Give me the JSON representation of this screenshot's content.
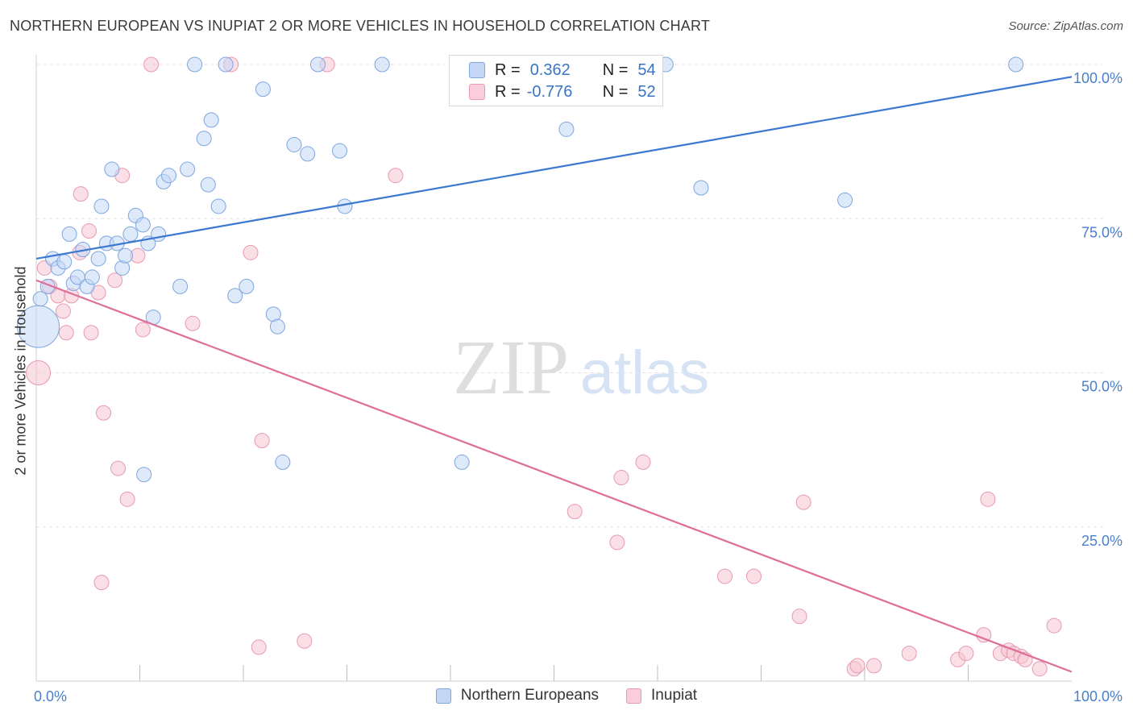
{
  "header": {
    "title": "NORTHERN EUROPEAN VS INUPIAT 2 OR MORE VEHICLES IN HOUSEHOLD CORRELATION CHART",
    "source": "Source: ZipAtlas.com"
  },
  "watermark": {
    "zip": "ZIP",
    "atlas": "atlas"
  },
  "legend": {
    "rows": [
      {
        "r_label": "R =",
        "r_value": "0.362",
        "n_label": "N =",
        "n_value": "54"
      },
      {
        "r_label": "R =",
        "r_value": "-0.776",
        "n_label": "N =",
        "n_value": "52"
      }
    ]
  },
  "chart_data": {
    "type": "scatter",
    "title": "NORTHERN EUROPEAN VS INUPIAT 2 OR MORE VEHICLES IN HOUSEHOLD CORRELATION CHART",
    "xlabel": "",
    "ylabel": "2 or more Vehicles in Household",
    "xlim": [
      0,
      100
    ],
    "ylim": [
      0,
      100
    ],
    "x_tick_labels": [
      {
        "value": 0,
        "label": "0.0%"
      },
      {
        "value": 100,
        "label": "100.0%"
      }
    ],
    "y_tick_labels": [
      {
        "value": 25,
        "label": "25.0%"
      },
      {
        "value": 50,
        "label": "50.0%"
      },
      {
        "value": 75,
        "label": "75.0%"
      },
      {
        "value": 100,
        "label": "100.0%"
      }
    ],
    "grid": true,
    "legend_position": "bottom-center",
    "colors": {
      "northern_europeans": "#7ea6e0",
      "inupiat": "#e79ab0",
      "blue_line": "#3b78d0",
      "pink_line": "#de6e98"
    },
    "series": [
      {
        "name": "Northern Europeans",
        "r": 0.362,
        "n": 54,
        "trend": [
          [
            0,
            68.5
          ],
          [
            100,
            98
          ]
        ],
        "points": [
          [
            0.2,
            57.5
          ],
          [
            0.4,
            62
          ],
          [
            1.1,
            64
          ],
          [
            1.6,
            68.5
          ],
          [
            2.1,
            67
          ],
          [
            2.7,
            68
          ],
          [
            3.2,
            72.5
          ],
          [
            3.6,
            64.5
          ],
          [
            4.0,
            65.5
          ],
          [
            4.5,
            70
          ],
          [
            4.9,
            64
          ],
          [
            5.4,
            65.5
          ],
          [
            6.0,
            68.5
          ],
          [
            6.3,
            77
          ],
          [
            6.8,
            71
          ],
          [
            7.3,
            83
          ],
          [
            7.8,
            71
          ],
          [
            8.3,
            67
          ],
          [
            8.6,
            69
          ],
          [
            9.1,
            72.5
          ],
          [
            9.6,
            75.5
          ],
          [
            10.3,
            74
          ],
          [
            10.8,
            71
          ],
          [
            11.3,
            59
          ],
          [
            11.8,
            72.5
          ],
          [
            12.3,
            81
          ],
          [
            12.8,
            82
          ],
          [
            13.9,
            64
          ],
          [
            14.6,
            83
          ],
          [
            16.2,
            88
          ],
          [
            16.6,
            80.5
          ],
          [
            16.9,
            91
          ],
          [
            17.6,
            77
          ],
          [
            18.3,
            100
          ],
          [
            19.2,
            62.5
          ],
          [
            20.3,
            64
          ],
          [
            21.9,
            96
          ],
          [
            22.9,
            59.5
          ],
          [
            23.3,
            57.5
          ],
          [
            23.8,
            35.5
          ],
          [
            24.9,
            87
          ],
          [
            26.2,
            85.5
          ],
          [
            27.2,
            100
          ],
          [
            29.3,
            86
          ],
          [
            29.8,
            77
          ],
          [
            33.4,
            100
          ],
          [
            41.1,
            35.5
          ],
          [
            51.2,
            89.5
          ],
          [
            60.8,
            100
          ],
          [
            64.2,
            80
          ],
          [
            78.1,
            78
          ],
          [
            94.6,
            100
          ],
          [
            10.4,
            33.5
          ],
          [
            15.3,
            100
          ]
        ]
      },
      {
        "name": "Inupiat",
        "r": -0.776,
        "n": 52,
        "trend": [
          [
            0,
            65
          ],
          [
            100,
            1.5
          ]
        ],
        "points": [
          [
            0.2,
            50
          ],
          [
            0.8,
            67
          ],
          [
            1.3,
            64
          ],
          [
            2.1,
            62.5
          ],
          [
            2.6,
            60
          ],
          [
            2.9,
            56.5
          ],
          [
            3.4,
            62.5
          ],
          [
            4.2,
            69.5
          ],
          [
            4.3,
            79
          ],
          [
            5.1,
            73
          ],
          [
            5.3,
            56.5
          ],
          [
            6.0,
            63
          ],
          [
            6.3,
            16
          ],
          [
            6.5,
            43.5
          ],
          [
            7.6,
            65
          ],
          [
            7.9,
            34.5
          ],
          [
            8.3,
            82
          ],
          [
            8.8,
            29.5
          ],
          [
            9.8,
            69
          ],
          [
            10.3,
            57
          ],
          [
            11.1,
            100
          ],
          [
            15.1,
            58
          ],
          [
            18.8,
            100
          ],
          [
            20.7,
            69.5
          ],
          [
            21.5,
            5.5
          ],
          [
            21.8,
            39
          ],
          [
            25.9,
            6.5
          ],
          [
            28.1,
            100
          ],
          [
            34.7,
            82
          ],
          [
            52.0,
            27.5
          ],
          [
            56.1,
            22.5
          ],
          [
            56.5,
            33
          ],
          [
            58.6,
            35.5
          ],
          [
            66.5,
            17
          ],
          [
            69.3,
            17
          ],
          [
            73.7,
            10.5
          ],
          [
            74.1,
            29
          ],
          [
            79.0,
            2
          ],
          [
            79.3,
            2.5
          ],
          [
            80.9,
            2.5
          ],
          [
            84.3,
            4.5
          ],
          [
            89.0,
            3.5
          ],
          [
            89.8,
            4.5
          ],
          [
            91.5,
            7.5
          ],
          [
            91.9,
            29.5
          ],
          [
            93.1,
            4.5
          ],
          [
            93.9,
            5
          ],
          [
            94.4,
            4.5
          ],
          [
            95.1,
            4
          ],
          [
            95.5,
            3.5
          ],
          [
            96.9,
            2
          ],
          [
            98.3,
            9
          ]
        ]
      }
    ]
  },
  "bottom_legend": {
    "items": [
      "Northern Europeans",
      "Inupiat"
    ]
  }
}
